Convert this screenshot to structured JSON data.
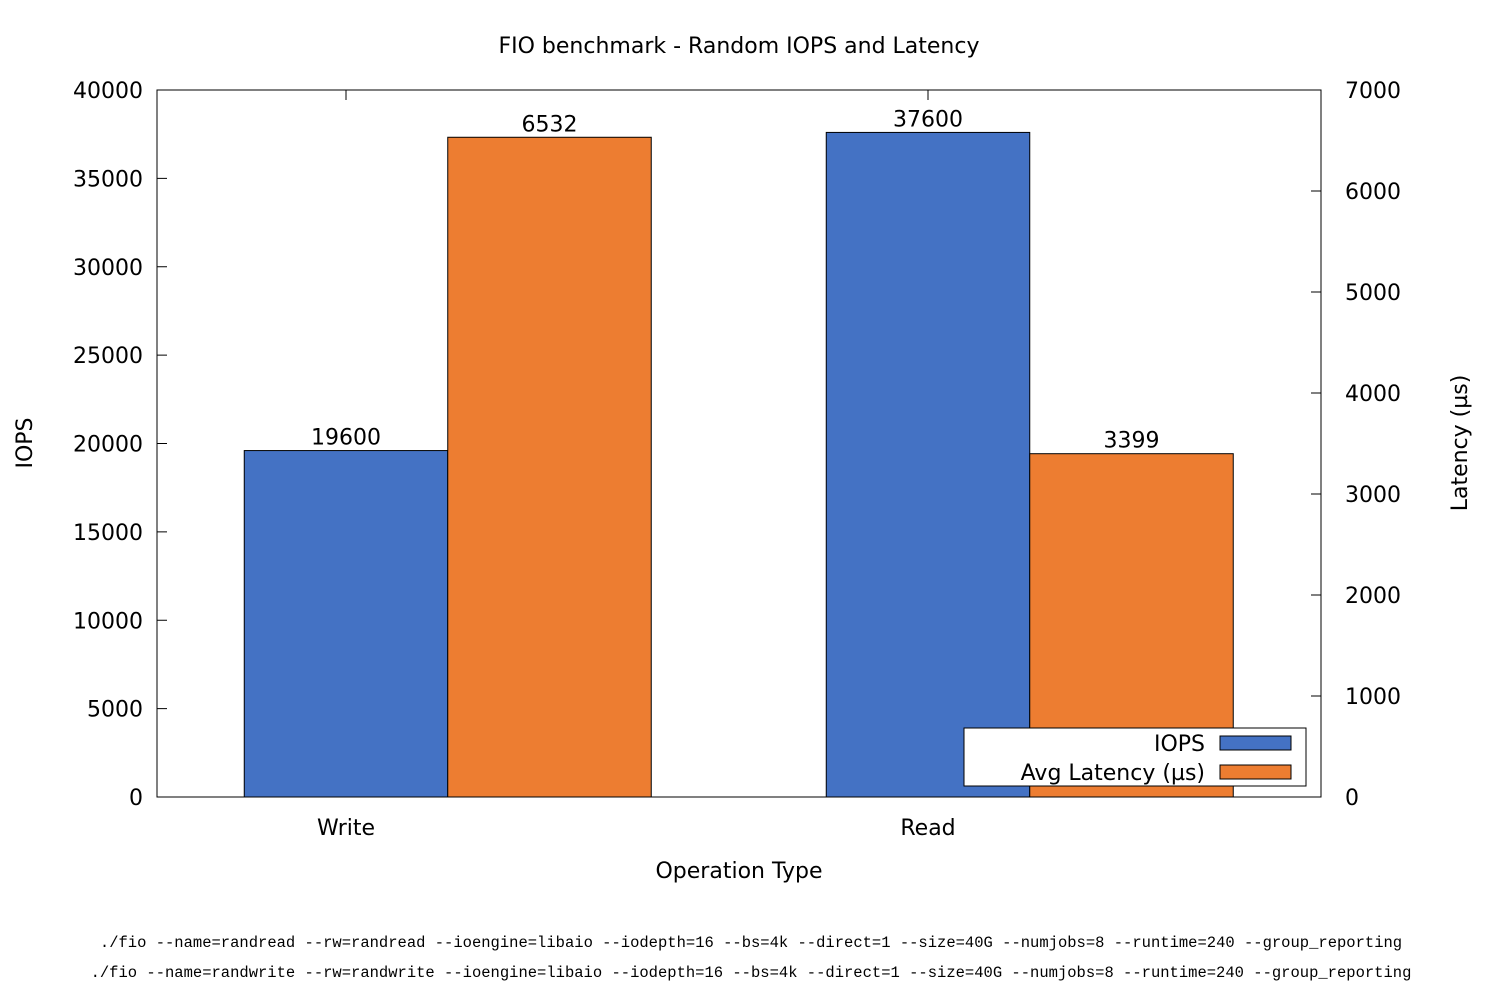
{
  "chart_data": {
    "type": "bar",
    "title": "FIO benchmark - Random IOPS and Latency",
    "xlabel": "Operation Type",
    "ylabel": "IOPS",
    "y2label": "Latency (µs)",
    "categories": [
      "Write",
      "Read"
    ],
    "ylim": [
      0,
      40000
    ],
    "y2lim": [
      0,
      7000
    ],
    "yticks": [
      0,
      5000,
      10000,
      15000,
      20000,
      25000,
      30000,
      35000,
      40000
    ],
    "y2ticks": [
      0,
      1000,
      2000,
      3000,
      4000,
      5000,
      6000,
      7000
    ],
    "grid": false,
    "legend_position": "bottom-right",
    "series": [
      {
        "name": "IOPS",
        "axis": "left",
        "color": "#4472C4",
        "values": [
          19600,
          37600
        ]
      },
      {
        "name": "Avg Latency (µs)",
        "axis": "right",
        "color": "#ED7D31",
        "values": [
          6532,
          3399
        ]
      }
    ],
    "footnotes": [
      "./fio --name=randread --rw=randread --ioengine=libaio --iodepth=16 --bs=4k --direct=1 --size=40G --numjobs=8 --runtime=240 --group_reporting",
      "./fio --name=randwrite --rw=randwrite --ioengine=libaio --iodepth=16 --bs=4k --direct=1 --size=40G --numjobs=8 --runtime=240 --group_reporting"
    ]
  }
}
